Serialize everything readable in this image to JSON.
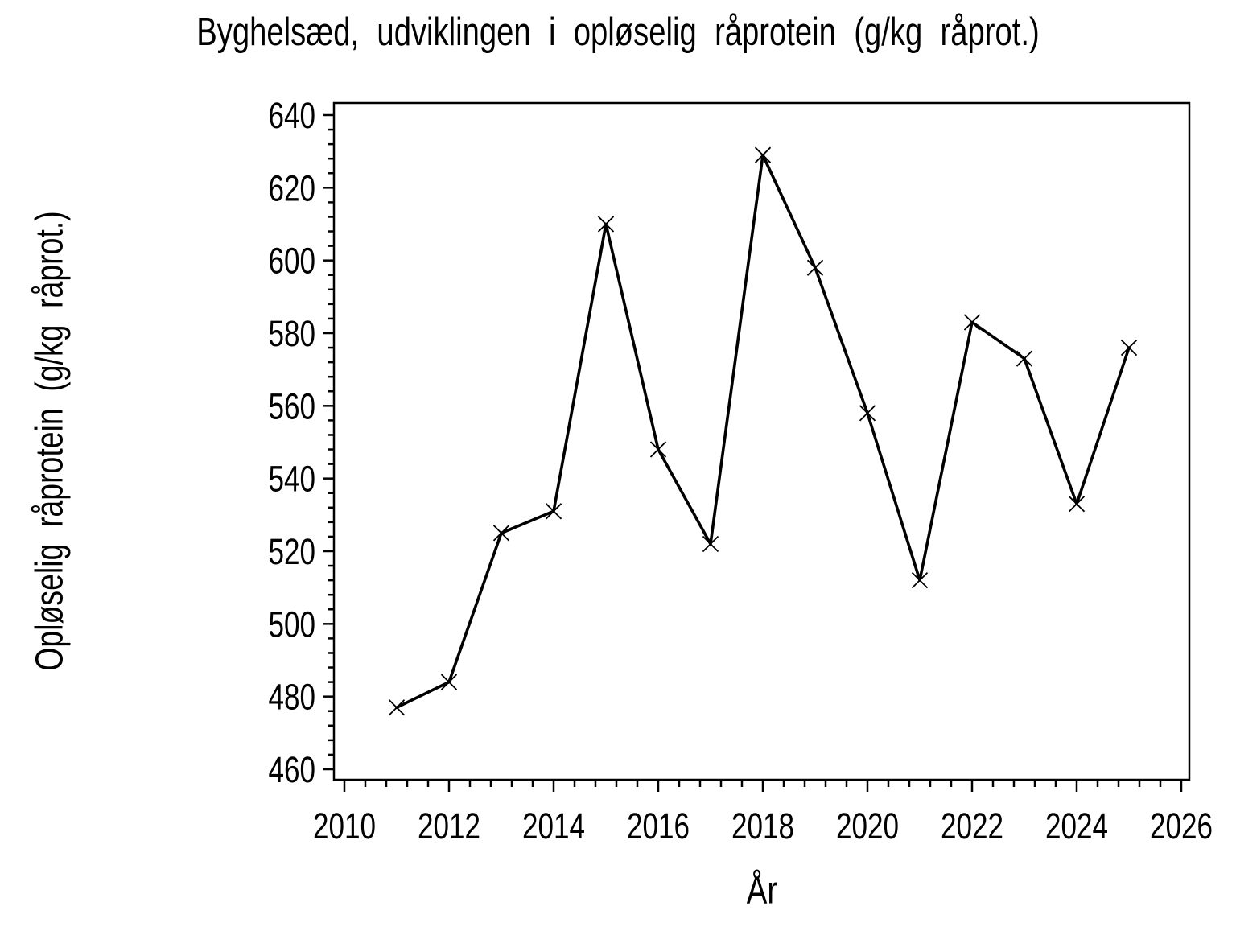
{
  "page": {
    "background_color": "#ffffff",
    "foreground_color": "#000000"
  },
  "chart_data": {
    "type": "line",
    "title": "Byghelsæd, udviklingen i opløselig råprotein (g/kg råprot.)",
    "xlabel": "År",
    "ylabel": "Opløselig råprotein (g/kg råprot.)",
    "series": [
      {
        "name": "Opløselig råprotein",
        "x": [
          2011,
          2012,
          2013,
          2014,
          2015,
          2016,
          2017,
          2018,
          2019,
          2020,
          2021,
          2022,
          2023,
          2024,
          2025
        ],
        "y": [
          477,
          484,
          525,
          531,
          610,
          548,
          522,
          629,
          598,
          558,
          512,
          583,
          573,
          533,
          576
        ]
      }
    ],
    "marker": "x",
    "line_color": "#000000",
    "marker_color": "#000000",
    "background_color": "#ffffff",
    "grid": false,
    "legend_position": "none",
    "xlim": [
      2010,
      2026
    ],
    "ylim": [
      460,
      640
    ],
    "xticks_major": [
      2010,
      2012,
      2014,
      2016,
      2018,
      2020,
      2022,
      2024,
      2026
    ],
    "xtick_labels": [
      "2010",
      "2012",
      "2014",
      "2016",
      "2018",
      "2020",
      "2022",
      "2024",
      "2026"
    ],
    "x_minor_step": 0.4,
    "yticks_major": [
      460,
      480,
      500,
      520,
      540,
      560,
      580,
      600,
      620,
      640
    ],
    "ytick_labels": [
      "460",
      "480",
      "500",
      "520",
      "540",
      "560",
      "580",
      "600",
      "620",
      "640"
    ],
    "y_minor_step": 4
  }
}
